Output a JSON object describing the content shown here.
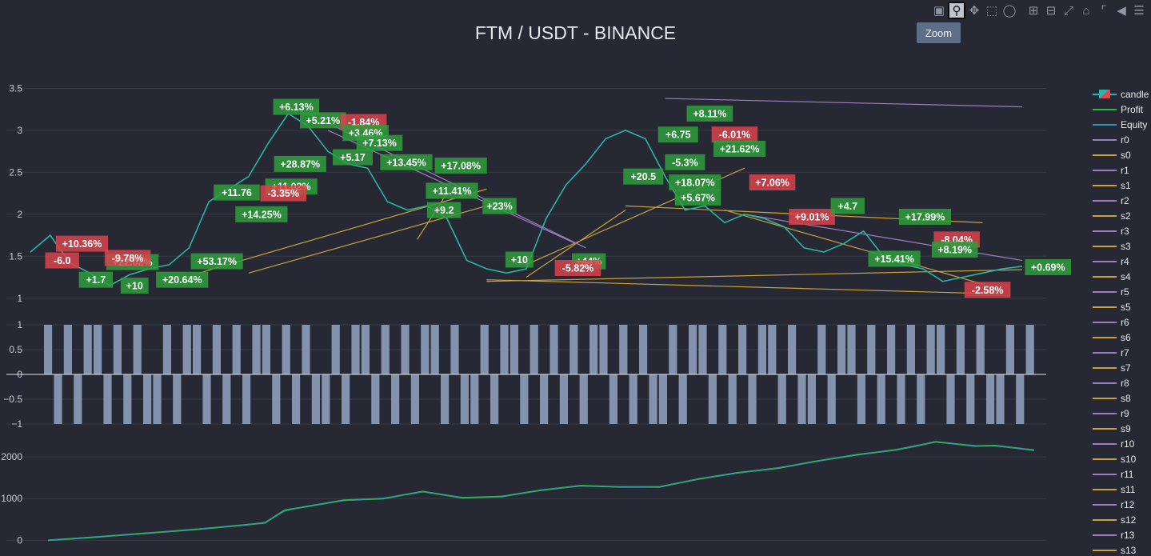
{
  "title": "FTM / USDT - BINANCE",
  "toolbar": {
    "tooltip": "Zoom",
    "icons": [
      "camera-icon",
      "zoom-icon",
      "pan-icon",
      "box-select-icon",
      "lasso-select-icon",
      "zoom-in-icon",
      "zoom-out-icon",
      "autoscale-icon",
      "reset-axes-icon",
      "spike-lines-icon",
      "hover-closest-icon",
      "hover-compare-icon"
    ],
    "active": "zoom-icon"
  },
  "colors": {
    "background": "#262933",
    "grid": "#363a46",
    "up": "#2ab5a4",
    "down": "#e2484c",
    "profit": "#2fb84a",
    "equity": "#3a8fb7",
    "resistance": "#9b7fc0",
    "support": "#c9a23a",
    "signal": "#8392ad",
    "win_box": "#2e9e3c",
    "loss_box": "#d9434b"
  },
  "legend": [
    {
      "label": "candle",
      "kind": "candle"
    },
    {
      "label": "Profit",
      "kind": "profit"
    },
    {
      "label": "Equity",
      "kind": "equity"
    },
    {
      "label": "r0",
      "kind": "r"
    },
    {
      "label": "s0",
      "kind": "s"
    },
    {
      "label": "r1",
      "kind": "r"
    },
    {
      "label": "s1",
      "kind": "s"
    },
    {
      "label": "r2",
      "kind": "r"
    },
    {
      "label": "s2",
      "kind": "s"
    },
    {
      "label": "r3",
      "kind": "r"
    },
    {
      "label": "s3",
      "kind": "s"
    },
    {
      "label": "r4",
      "kind": "r"
    },
    {
      "label": "s4",
      "kind": "s"
    },
    {
      "label": "r5",
      "kind": "r"
    },
    {
      "label": "s5",
      "kind": "s"
    },
    {
      "label": "r6",
      "kind": "r"
    },
    {
      "label": "s6",
      "kind": "s"
    },
    {
      "label": "r7",
      "kind": "r"
    },
    {
      "label": "s7",
      "kind": "s"
    },
    {
      "label": "r8",
      "kind": "r"
    },
    {
      "label": "s8",
      "kind": "s"
    },
    {
      "label": "r9",
      "kind": "r"
    },
    {
      "label": "s9",
      "kind": "s"
    },
    {
      "label": "r10",
      "kind": "r"
    },
    {
      "label": "s10",
      "kind": "s"
    },
    {
      "label": "r11",
      "kind": "r"
    },
    {
      "label": "s11",
      "kind": "s"
    },
    {
      "label": "r12",
      "kind": "r"
    },
    {
      "label": "s12",
      "kind": "s"
    },
    {
      "label": "r13",
      "kind": "r"
    },
    {
      "label": "s13",
      "kind": "s"
    }
  ],
  "chart_data": [
    {
      "type": "line",
      "panel": "price",
      "ylim": [
        0.95,
        3.6
      ],
      "yticks": [
        1,
        1.5,
        2,
        2.5,
        3,
        3.5
      ],
      "ytick_labels": [
        "1",
        "1.5",
        "2",
        "2.5",
        "3",
        "3.5"
      ],
      "xlim": [
        0,
        100
      ],
      "grid": true,
      "series": [
        {
          "name": "candle",
          "x": [
            0,
            2,
            4,
            6,
            8,
            10,
            12,
            14,
            16,
            18,
            20,
            22,
            24,
            26,
            28,
            30,
            32,
            34,
            36,
            38,
            40,
            42,
            44,
            46,
            48,
            50,
            52,
            54,
            56,
            58,
            60,
            62,
            64,
            66,
            68,
            70,
            72,
            74,
            76,
            78,
            80,
            82,
            84,
            86,
            88,
            90,
            92,
            94,
            96,
            98,
            100
          ],
          "y": [
            1.55,
            1.75,
            1.42,
            1.3,
            1.15,
            1.28,
            1.35,
            1.4,
            1.6,
            2.15,
            2.3,
            2.45,
            2.85,
            3.2,
            3.05,
            2.75,
            2.6,
            2.55,
            2.15,
            2.05,
            2.1,
            1.95,
            1.45,
            1.35,
            1.3,
            1.35,
            1.95,
            2.35,
            2.6,
            2.9,
            3.0,
            2.9,
            2.45,
            2.05,
            2.1,
            1.9,
            2.0,
            1.95,
            1.85,
            1.6,
            1.55,
            1.65,
            1.8,
            1.5,
            1.4,
            1.35,
            1.2,
            1.25,
            1.3,
            1.35,
            1.38
          ]
        }
      ],
      "support_lines": [
        {
          "x": [
            17,
            46
          ],
          "y": [
            1.3,
            2.3
          ]
        },
        {
          "x": [
            22,
            46
          ],
          "y": [
            1.3,
            2.1
          ]
        },
        {
          "x": [
            39,
            42
          ],
          "y": [
            1.7,
            2.25
          ]
        },
        {
          "x": [
            46,
            100
          ],
          "y": [
            1.2,
            1.34
          ]
        },
        {
          "x": [
            46,
            98
          ],
          "y": [
            1.22,
            1.05
          ]
        },
        {
          "x": [
            50,
            60
          ],
          "y": [
            1.25,
            2.05
          ]
        },
        {
          "x": [
            50,
            72
          ],
          "y": [
            1.4,
            2.55
          ]
        },
        {
          "x": [
            60,
            96
          ],
          "y": [
            2.1,
            1.9
          ]
        },
        {
          "x": [
            70,
            98
          ],
          "y": [
            2.05,
            1.1
          ]
        }
      ],
      "resistance_lines": [
        {
          "x": [
            64,
            100
          ],
          "y": [
            3.38,
            3.28
          ]
        },
        {
          "x": [
            30,
            55
          ],
          "y": [
            3.0,
            1.65
          ]
        },
        {
          "x": [
            28,
            56
          ],
          "y": [
            3.2,
            1.6
          ]
        },
        {
          "x": [
            72,
            100
          ],
          "y": [
            2.0,
            1.45
          ]
        }
      ],
      "annotations": [
        {
          "text": "+6.13%",
          "x": 26.8,
          "y": 3.28,
          "win": true
        },
        {
          "text": "+5.21%",
          "x": 29.5,
          "y": 3.12,
          "win": true
        },
        {
          "text": "-1.84%",
          "x": 33.6,
          "y": 3.1,
          "win": false
        },
        {
          "text": "+3.46%",
          "x": 33.8,
          "y": 2.97,
          "win": true
        },
        {
          "text": "+7.13%",
          "x": 35.2,
          "y": 2.85,
          "win": true
        },
        {
          "text": "+28.87%",
          "x": 27.2,
          "y": 2.6,
          "win": true
        },
        {
          "text": "+5.17",
          "x": 32.5,
          "y": 2.68,
          "win": true
        },
        {
          "text": "+13.45%",
          "x": 37.9,
          "y": 2.62,
          "win": true
        },
        {
          "text": "+17.08%",
          "x": 43.4,
          "y": 2.58,
          "win": true
        },
        {
          "text": "+11.02%",
          "x": 26.3,
          "y": 2.33,
          "win": true
        },
        {
          "text": "-3.35%",
          "x": 25.5,
          "y": 2.25,
          "win": false
        },
        {
          "text": "+11.76",
          "x": 20.8,
          "y": 2.26,
          "win": true
        },
        {
          "text": "+14.25%",
          "x": 23.3,
          "y": 2.0,
          "win": true
        },
        {
          "text": "+11.41%",
          "x": 42.5,
          "y": 2.28,
          "win": true
        },
        {
          "text": "+9.2",
          "x": 41.7,
          "y": 2.05,
          "win": true
        },
        {
          "text": "+23%",
          "x": 47.3,
          "y": 2.1,
          "win": true
        },
        {
          "text": "+10.36%",
          "x": 5.2,
          "y": 1.65,
          "win": false
        },
        {
          "text": "+22.02%",
          "x": 10.3,
          "y": 1.43,
          "win": true
        },
        {
          "text": "-9.78%",
          "x": 9.8,
          "y": 1.48,
          "win": false
        },
        {
          "text": "+10",
          "x": 10.5,
          "y": 1.15,
          "win": true
        },
        {
          "text": "+20.64%",
          "x": 15.3,
          "y": 1.22,
          "win": true
        },
        {
          "text": "+53.17%",
          "x": 18.8,
          "y": 1.44,
          "win": true
        },
        {
          "text": "-6.0",
          "x": 3.2,
          "y": 1.45,
          "win": false
        },
        {
          "text": "+1.7",
          "x": 6.6,
          "y": 1.22,
          "win": true
        },
        {
          "text": "+10",
          "x": 49.3,
          "y": 1.46,
          "win": true
        },
        {
          "text": "+44%",
          "x": 56.3,
          "y": 1.44,
          "win": true
        },
        {
          "text": "-5.82%",
          "x": 55.2,
          "y": 1.36,
          "win": false
        },
        {
          "text": "+8.11%",
          "x": 68.5,
          "y": 3.2,
          "win": true
        },
        {
          "text": "+6.75",
          "x": 65.3,
          "y": 2.95,
          "win": true
        },
        {
          "text": "-6.01%",
          "x": 71.0,
          "y": 2.95,
          "win": false
        },
        {
          "text": "+21.62%",
          "x": 71.5,
          "y": 2.78,
          "win": true
        },
        {
          "text": "-5.3%",
          "x": 66.0,
          "y": 2.62,
          "win": true
        },
        {
          "text": "+20.5",
          "x": 61.8,
          "y": 2.45,
          "win": true
        },
        {
          "text": "+18.07%",
          "x": 67.0,
          "y": 2.38,
          "win": true
        },
        {
          "text": "+5.67%",
          "x": 67.3,
          "y": 2.2,
          "win": true
        },
        {
          "text": "+7.06%",
          "x": 74.8,
          "y": 2.38,
          "win": false
        },
        {
          "text": "+9.01%",
          "x": 78.8,
          "y": 1.97,
          "win": false
        },
        {
          "text": "+4.7",
          "x": 82.4,
          "y": 2.1,
          "win": true
        },
        {
          "text": "+17.99%",
          "x": 90.2,
          "y": 1.97,
          "win": true
        },
        {
          "text": "-8.04%",
          "x": 93.4,
          "y": 1.7,
          "win": false
        },
        {
          "text": "+8.19%",
          "x": 93.2,
          "y": 1.58,
          "win": true
        },
        {
          "text": "+15.41%",
          "x": 87.1,
          "y": 1.47,
          "win": true
        },
        {
          "text": "-2.58%",
          "x": 96.5,
          "y": 1.1,
          "win": false
        },
        {
          "text": "+0.69%",
          "x": 102.6,
          "y": 1.37,
          "win": true
        }
      ]
    },
    {
      "type": "bar",
      "panel": "signals",
      "name": "signals",
      "ylim": [
        -1,
        1
      ],
      "yticks": [
        1,
        0.5,
        0,
        -0.5,
        -1
      ],
      "ytick_labels": [
        "1",
        "0.5",
        "0",
        "−0.5",
        "−1"
      ],
      "values": [
        1,
        -1,
        1,
        -1,
        1,
        1,
        -1,
        1,
        -1,
        1,
        -1,
        -1,
        1,
        -1,
        1,
        1,
        -1,
        1,
        -1,
        1,
        -1,
        1,
        1,
        -1,
        1,
        -1,
        1,
        -1,
        -1,
        1,
        -1,
        1,
        1,
        -1,
        1,
        -1,
        1,
        -1,
        1,
        1,
        -1,
        1,
        -1,
        -1,
        1,
        -1,
        1,
        1,
        -1,
        1,
        -1,
        1,
        -1,
        1,
        -1,
        1,
        1,
        -1,
        1,
        -1,
        1,
        -1,
        -1,
        1,
        -1,
        1,
        1,
        -1,
        1,
        -1,
        1,
        -1,
        1,
        1,
        -1,
        1,
        -1,
        -1,
        1,
        -1,
        1,
        1,
        -1,
        1,
        -1,
        1,
        -1,
        1,
        -1,
        1,
        1,
        -1,
        1,
        -1,
        1,
        -1,
        -1,
        1,
        -1,
        1
      ]
    },
    {
      "type": "line",
      "panel": "profit",
      "ylim": [
        -50,
        2500
      ],
      "yticks": [
        0,
        1000,
        2000
      ],
      "ytick_labels": [
        "0",
        "1000",
        "2000"
      ],
      "xlim": [
        0,
        100
      ],
      "series": [
        {
          "name": "Profit",
          "x": [
            0,
            5,
            10,
            15,
            20,
            22,
            24,
            26,
            30,
            34,
            38,
            42,
            46,
            50,
            54,
            58,
            62,
            66,
            70,
            74,
            78,
            82,
            86,
            88,
            90,
            94,
            96,
            100
          ],
          "y": [
            0,
            80,
            170,
            260,
            370,
            420,
            720,
            800,
            960,
            1000,
            1170,
            1020,
            1050,
            1200,
            1310,
            1280,
            1280,
            1470,
            1620,
            1730,
            1900,
            2050,
            2170,
            2260,
            2360,
            2260,
            2270,
            2160
          ]
        },
        {
          "name": "Equity",
          "x": [
            0,
            5,
            10,
            15,
            20,
            22,
            24,
            26,
            30,
            34,
            38,
            42,
            46,
            50,
            54,
            58,
            62,
            66,
            70,
            74,
            78,
            82,
            86,
            88,
            90,
            94,
            96,
            100
          ],
          "y": [
            0,
            90,
            160,
            270,
            360,
            430,
            700,
            810,
            950,
            1010,
            1160,
            1030,
            1040,
            1210,
            1300,
            1290,
            1270,
            1480,
            1610,
            1740,
            1890,
            2060,
            2160,
            2270,
            2350,
            2270,
            2260,
            2170
          ]
        }
      ]
    }
  ]
}
